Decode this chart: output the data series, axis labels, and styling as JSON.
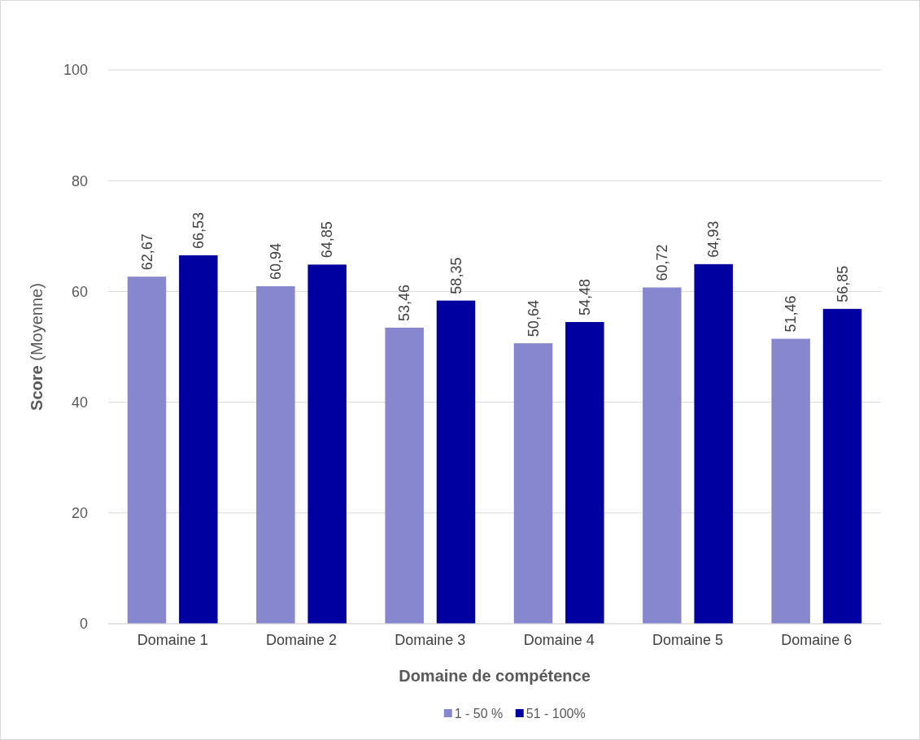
{
  "chart_data": {
    "type": "bar",
    "xlabel": "Domaine de compétence",
    "ylabel": "Score (Moyenne)",
    "categories": [
      "Domaine 1",
      "Domaine 2",
      "Domaine 3",
      "Domaine 4",
      "Domaine 5",
      "Domaine 6"
    ],
    "series": [
      {
        "name": "1 - 50 %",
        "color": "#8787d0",
        "values": [
          62.67,
          60.94,
          53.46,
          50.64,
          60.72,
          51.46
        ],
        "value_labels": [
          "62,67",
          "60,94",
          "53,46",
          "50,64",
          "60,72",
          "51,46"
        ]
      },
      {
        "name": "51 - 100%",
        "color": "#0000a0",
        "values": [
          66.53,
          64.85,
          58.35,
          54.48,
          64.93,
          56.85
        ],
        "value_labels": [
          "66,53",
          "64,85",
          "58,35",
          "54,48",
          "64,93",
          "56,85"
        ]
      }
    ],
    "ylim": [
      0,
      100
    ],
    "yticks": [
      0,
      20,
      40,
      60,
      80,
      100
    ],
    "grid": "y",
    "legend": "bottom"
  }
}
